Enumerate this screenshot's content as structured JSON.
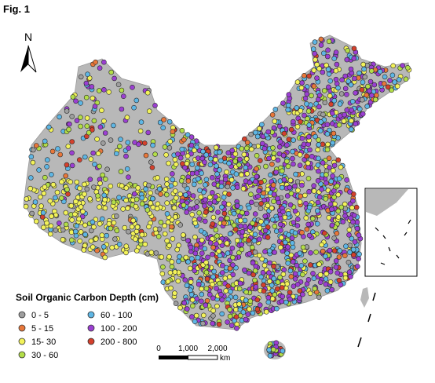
{
  "figure_label": "Fig. 1",
  "north_label": "N",
  "legend": {
    "title": "Soil Organic Carbon Depth (cm)",
    "items": [
      {
        "label": "0 - 5",
        "color": "#9e9e9e"
      },
      {
        "label": "5 - 15",
        "color": "#e8773a"
      },
      {
        "label": "15- 30",
        "color": "#f2f25a"
      },
      {
        "label": "30 - 60",
        "color": "#b3de48"
      },
      {
        "label": "60 - 100",
        "color": "#5eb6e4"
      },
      {
        "label": "100 - 200",
        "color": "#9b3fd2"
      },
      {
        "label": "200 - 800",
        "color": "#d4402c"
      }
    ]
  },
  "scale_bar": {
    "labels": [
      "0",
      "1,000",
      "2,000"
    ],
    "unit": "km"
  }
}
